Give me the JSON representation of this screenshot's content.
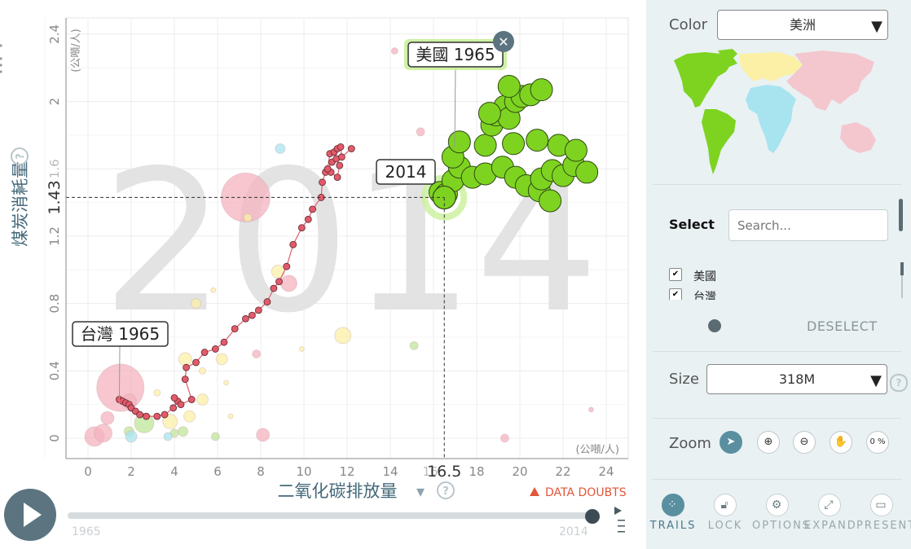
{
  "chart_data": {
    "type": "scatter",
    "subtype": "bubble-with-trails",
    "year_watermark": "2014",
    "xlabel": "二氧化碳排放量",
    "ylabel": "煤炭消耗量",
    "x_unit": "(公噸/人)",
    "y_unit": "(公噸/人)",
    "xlim": [
      -1,
      25
    ],
    "ylim": [
      -0.05,
      2.55
    ],
    "x_ticks": [
      0,
      2,
      4,
      6,
      8,
      10,
      12,
      14,
      16,
      18,
      20,
      22,
      24
    ],
    "y_ticks": [
      0,
      0.4,
      0.8,
      1.2,
      1.6,
      2,
      2.4
    ],
    "grid": true,
    "crosshair": {
      "x": 16.5,
      "y": 1.43,
      "x_label": "16.5",
      "y_label": "1.43"
    },
    "series": [
      {
        "name": "台灣",
        "label": "台灣 1965",
        "color": "#e35a6a",
        "trail": [
          [
            1.45,
            0.23
          ],
          [
            1.6,
            0.22
          ],
          [
            1.75,
            0.21
          ],
          [
            1.9,
            0.2
          ],
          [
            2.0,
            0.18
          ],
          [
            2.2,
            0.16
          ],
          [
            2.4,
            0.14
          ],
          [
            2.7,
            0.13
          ],
          [
            3.2,
            0.13
          ],
          [
            3.55,
            0.14
          ],
          [
            3.95,
            0.18
          ],
          [
            4.15,
            0.22
          ],
          [
            4.0,
            0.24
          ],
          [
            4.3,
            0.2
          ],
          [
            4.8,
            0.23
          ],
          [
            4.5,
            0.35
          ],
          [
            4.55,
            0.42
          ],
          [
            5.0,
            0.45
          ],
          [
            5.4,
            0.51
          ],
          [
            5.9,
            0.53
          ],
          [
            6.3,
            0.57
          ],
          [
            6.8,
            0.65
          ],
          [
            7.3,
            0.71
          ],
          [
            7.6,
            0.73
          ],
          [
            7.9,
            0.76
          ],
          [
            8.3,
            0.81
          ],
          [
            8.6,
            0.89
          ],
          [
            8.85,
            0.93
          ],
          [
            9.2,
            1.02
          ],
          [
            9.5,
            1.15
          ],
          [
            9.9,
            1.25
          ],
          [
            10.2,
            1.3
          ],
          [
            10.4,
            1.36
          ],
          [
            10.8,
            1.43
          ],
          [
            10.85,
            1.52
          ],
          [
            11.0,
            1.58
          ],
          [
            11.3,
            1.64
          ],
          [
            11.5,
            1.66
          ],
          [
            11.65,
            1.62
          ],
          [
            11.55,
            1.55
          ],
          [
            11.25,
            1.58
          ],
          [
            11.1,
            1.6
          ],
          [
            11.2,
            1.69
          ],
          [
            11.4,
            1.7
          ],
          [
            11.55,
            1.72
          ],
          [
            11.7,
            1.73
          ],
          [
            11.75,
            1.67
          ],
          [
            12.2,
            1.72
          ]
        ]
      },
      {
        "name": "美國",
        "label": "美國 1965",
        "color": "#7ed321",
        "current_point": [
          16.5,
          1.43
        ],
        "points": [
          [
            16.3,
            1.46
          ],
          [
            16.6,
            1.45
          ],
          [
            16.9,
            1.53
          ],
          [
            17.2,
            1.61
          ],
          [
            17.8,
            1.55
          ],
          [
            16.9,
            1.67
          ],
          [
            17.2,
            1.76
          ],
          [
            18.4,
            1.57
          ],
          [
            19.2,
            1.61
          ],
          [
            19.8,
            1.55
          ],
          [
            20.3,
            1.5
          ],
          [
            20.9,
            1.47
          ],
          [
            21.4,
            1.41
          ],
          [
            21.0,
            1.54
          ],
          [
            21.5,
            1.59
          ],
          [
            22.0,
            1.56
          ],
          [
            22.5,
            1.62
          ],
          [
            23.1,
            1.58
          ],
          [
            21.8,
            1.74
          ],
          [
            22.6,
            1.71
          ],
          [
            20.8,
            1.77
          ],
          [
            19.7,
            1.75
          ],
          [
            18.4,
            1.74
          ],
          [
            18.7,
            1.86
          ],
          [
            18.9,
            1.92
          ],
          [
            19.3,
            1.97
          ],
          [
            19.5,
            1.9
          ],
          [
            19.8,
            2.0
          ],
          [
            20.1,
            2.03
          ],
          [
            20.5,
            2.04
          ],
          [
            21.0,
            2.07
          ],
          [
            19.5,
            2.09
          ],
          [
            18.6,
            1.93
          ]
        ]
      }
    ],
    "background_bubbles": [
      {
        "x": 1.5,
        "y": 0.3,
        "r": 29,
        "color": "#f4b3bd"
      },
      {
        "x": 7.3,
        "y": 1.43,
        "r": 30,
        "color": "#f4b3bd"
      },
      {
        "x": 0.3,
        "y": 0.01,
        "r": 12,
        "color": "#f4b3bd"
      },
      {
        "x": 0.7,
        "y": 0.03,
        "r": 11,
        "color": "#f4b3bd"
      },
      {
        "x": 0.9,
        "y": 0.12,
        "r": 8,
        "color": "#f4b3bd"
      },
      {
        "x": 1.9,
        "y": 0.22,
        "r": 9,
        "color": "#f4b3bd"
      },
      {
        "x": 9.3,
        "y": 0.92,
        "r": 10,
        "color": "#f4b3bd"
      },
      {
        "x": 8.1,
        "y": 0.02,
        "r": 8,
        "color": "#f4b3bd"
      },
      {
        "x": 19.3,
        "y": 0.0,
        "r": 5,
        "color": "#f4b3bd"
      },
      {
        "x": 14.2,
        "y": 2.3,
        "r": 4,
        "color": "#f4b3bd"
      },
      {
        "x": 15.4,
        "y": 1.82,
        "r": 5,
        "color": "#f4b3bd"
      },
      {
        "x": 23.3,
        "y": 0.17,
        "r": 3,
        "color": "#f4b3bd"
      },
      {
        "x": 7.8,
        "y": 0.5,
        "r": 5,
        "color": "#f4b3bd"
      },
      {
        "x": 2.6,
        "y": 0.09,
        "r": 12,
        "color": "#bfe69a"
      },
      {
        "x": 1.9,
        "y": 0.04,
        "r": 6,
        "color": "#bfe69a"
      },
      {
        "x": 4.0,
        "y": 0.03,
        "r": 5,
        "color": "#bfe69a"
      },
      {
        "x": 5.9,
        "y": 0.01,
        "r": 5,
        "color": "#bfe69a"
      },
      {
        "x": 15.1,
        "y": 0.55,
        "r": 5,
        "color": "#bfe69a"
      },
      {
        "x": 4.4,
        "y": 0.04,
        "r": 6,
        "color": "#bfe69a"
      },
      {
        "x": 2.0,
        "y": 0.01,
        "r": 7,
        "color": "#a8e4f0"
      },
      {
        "x": 3.7,
        "y": 0.01,
        "r": 5,
        "color": "#a8e4f0"
      },
      {
        "x": 8.9,
        "y": 1.72,
        "r": 6,
        "color": "#a8e4f0"
      },
      {
        "x": 4.5,
        "y": 0.47,
        "r": 8,
        "color": "#fbf0a6"
      },
      {
        "x": 6.2,
        "y": 0.47,
        "r": 7,
        "color": "#fbf0a6"
      },
      {
        "x": 5.3,
        "y": 0.23,
        "r": 7,
        "color": "#fbf0a6"
      },
      {
        "x": 4.7,
        "y": 0.13,
        "r": 7,
        "color": "#fbf0a6"
      },
      {
        "x": 3.8,
        "y": 0.1,
        "r": 9,
        "color": "#fbf0a6"
      },
      {
        "x": 5.0,
        "y": 0.8,
        "r": 6,
        "color": "#fbf0a6"
      },
      {
        "x": 8.8,
        "y": 0.99,
        "r": 8,
        "color": "#fbf0a6"
      },
      {
        "x": 7.4,
        "y": 1.31,
        "r": 5,
        "color": "#fbf0a6"
      },
      {
        "x": 11.8,
        "y": 0.61,
        "r": 10,
        "color": "#fbf0a6"
      },
      {
        "x": 3.2,
        "y": 0.27,
        "r": 4,
        "color": "#fbf0a6"
      },
      {
        "x": 5.3,
        "y": 0.4,
        "r": 4,
        "color": "#fbf0a6"
      },
      {
        "x": 6.6,
        "y": 0.13,
        "r": 3,
        "color": "#fbf0a6"
      },
      {
        "x": 9.9,
        "y": 0.53,
        "r": 3,
        "color": "#fbf0a6"
      },
      {
        "x": 6.4,
        "y": 0.33,
        "r": 3,
        "color": "#fbf0a6"
      },
      {
        "x": 5.8,
        "y": 0.88,
        "r": 3,
        "color": "#fbf0a6"
      }
    ]
  },
  "ui": {
    "y_axis_arrow": "▾",
    "x_axis_arrow": "▾",
    "help_glyph": "?",
    "data_doubts": "DATA DOUBTS",
    "timeline": {
      "start_label": "1965",
      "end_label": "2014",
      "progress": 1.0
    }
  },
  "panel": {
    "color_label": "Color",
    "color_value": "美洲",
    "select_label": "Select",
    "search_placeholder": "Search...",
    "selected_items": [
      "美國",
      "台灣"
    ],
    "deselect_label": "DESELECT",
    "size_label": "Size",
    "size_value": "318M",
    "zoom_label": "Zoom",
    "zoom_percent": "0 %",
    "toolbar": [
      {
        "id": "trails",
        "label": "TRAILS",
        "icon": "trails-icon"
      },
      {
        "id": "lock",
        "label": "LOCK",
        "icon": "lock-icon"
      },
      {
        "id": "options",
        "label": "OPTIONS",
        "icon": "gear-icon"
      },
      {
        "id": "expand",
        "label": "EXPAND",
        "icon": "expand-icon"
      },
      {
        "id": "present",
        "label": "PRESENT",
        "icon": "present-icon"
      }
    ],
    "map_colors": {
      "americas": "#7ed321",
      "europe": "#fbf0a6",
      "asia": "#f4c7cf",
      "africa": "#a8e4f0"
    }
  }
}
